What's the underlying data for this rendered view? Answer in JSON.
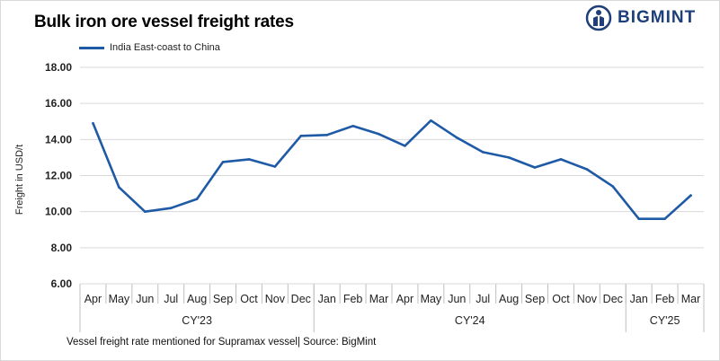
{
  "header": {
    "title": "Bulk iron ore vessel freight rates",
    "logo_text": "BIGMINT"
  },
  "footnote": "Vessel freight rate mentioned for Supramax vessel| Source: BigMint",
  "colors": {
    "series": "#1f5aa6",
    "logo": "#1f3f7a",
    "axis": "#bfbfbf"
  },
  "icons": {
    "logo": "bigmint-logo-icon"
  },
  "chart_data": {
    "type": "line",
    "title": "Bulk iron ore vessel freight rates",
    "xlabel": "",
    "ylabel": "Freight in USD/t",
    "ylim": [
      6,
      18
    ],
    "y_ticks": [
      "6.00",
      "8.00",
      "10.00",
      "12.00",
      "14.00",
      "16.00",
      "18.00"
    ],
    "grid": "horizontal",
    "legend_position": "top-left",
    "categories": [
      "Apr",
      "May",
      "Jun",
      "Jul",
      "Aug",
      "Sep",
      "Oct",
      "Nov",
      "Dec",
      "Jan",
      "Feb",
      "Mar",
      "Apr",
      "May",
      "Jun",
      "Jul",
      "Aug",
      "Sep",
      "Oct",
      "Nov",
      "Dec",
      "Jan",
      "Feb",
      "Mar"
    ],
    "groups": [
      {
        "label": "CY'23",
        "count": 9
      },
      {
        "label": "CY'24",
        "count": 12
      },
      {
        "label": "CY'25",
        "count": 3
      }
    ],
    "series": [
      {
        "name": "India East-coast to China",
        "values": [
          14.9,
          11.35,
          10.0,
          10.2,
          10.7,
          12.75,
          12.9,
          12.5,
          14.2,
          14.25,
          14.75,
          14.3,
          13.65,
          15.05,
          14.1,
          13.3,
          13.0,
          12.45,
          12.9,
          12.35,
          11.4,
          9.6,
          9.6,
          10.9
        ]
      }
    ]
  }
}
